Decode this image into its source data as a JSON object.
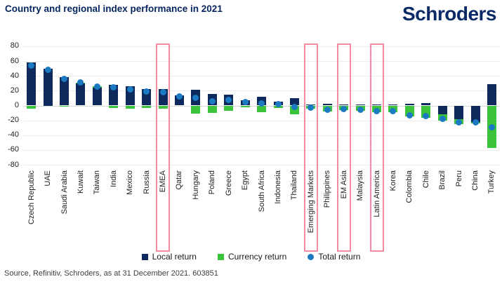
{
  "header": {
    "title": "Country and regional index performance in 2021",
    "logo_text": "Schroders"
  },
  "chart_data": {
    "type": "bar",
    "title": "Country and regional index performance in 2021",
    "categories": [
      "Czech Republic",
      "UAE",
      "Saudi Arabia",
      "Kuwait",
      "Taiwan",
      "India",
      "Mexico",
      "Russia",
      "EMEA",
      "Qatar",
      "Hungary",
      "Poland",
      "Greece",
      "Egypt",
      "South Africa",
      "Indonesia",
      "Thailand",
      "Emerging Markets",
      "Philippines",
      "EM Asia",
      "Malaysia",
      "Latin America",
      "Korea",
      "Colombia",
      "Chile",
      "Brazil",
      "Peru",
      "China",
      "Turkey"
    ],
    "series": [
      {
        "name": "Local return",
        "type": "bar",
        "color": "#0e2a5c",
        "values": [
          58,
          50,
          38,
          30,
          24,
          28,
          26,
          22,
          22,
          14,
          21,
          16,
          15,
          7,
          12,
          5,
          10,
          1,
          2,
          1,
          1,
          1,
          1,
          2,
          3,
          -12,
          -18,
          -22,
          29
        ]
      },
      {
        "name": "Currency return",
        "type": "bar",
        "color": "#3bc43b",
        "values": [
          -4,
          0,
          -1,
          1,
          2,
          -3,
          -4,
          -3,
          -4,
          0,
          -11,
          -10,
          -7,
          -2,
          -9,
          -3,
          -12,
          -4,
          -8,
          -6,
          -7,
          -9,
          -9,
          -15,
          -17,
          -8,
          -7,
          -2,
          -57
        ]
      },
      {
        "name": "Total return",
        "type": "point",
        "color": "#1b7ac2",
        "values": [
          54,
          48,
          36,
          31,
          26,
          25,
          22,
          19,
          18,
          12,
          10,
          6,
          8,
          5,
          3,
          2,
          -2,
          -3,
          -6,
          -5,
          -6,
          -8,
          -8,
          -13,
          -14,
          -18,
          -23,
          -23,
          -29
        ]
      }
    ],
    "highlighted_categories": [
      "EMEA",
      "Emerging Markets",
      "EM Asia",
      "Latin America"
    ],
    "highlight_box_color": "#f48ca4",
    "ylim": [
      -80,
      80
    ],
    "yticks": [
      80,
      60,
      40,
      20,
      0,
      -20,
      -40,
      -60,
      -80
    ],
    "grid": true,
    "legend_position": "bottom"
  },
  "legend": {
    "items": [
      {
        "label": "Local return",
        "color": "#0e2a5c",
        "marker": "square"
      },
      {
        "label": "Currency return",
        "color": "#3bc43b",
        "marker": "square"
      },
      {
        "label": "Total return",
        "color": "#1b7ac2",
        "marker": "circle"
      }
    ]
  },
  "footer": {
    "source_text": "Source, Refinitiv, Schroders, as at 31 December 2021. 603851"
  },
  "colors": {
    "title": "#06255f",
    "logo": "#0a2a66",
    "background": "#ffffff",
    "gridline": "#ececec",
    "zero_line": "#d9d9d9",
    "axis_text": "#1f1f1f",
    "source_text": "#3d3d3d"
  }
}
